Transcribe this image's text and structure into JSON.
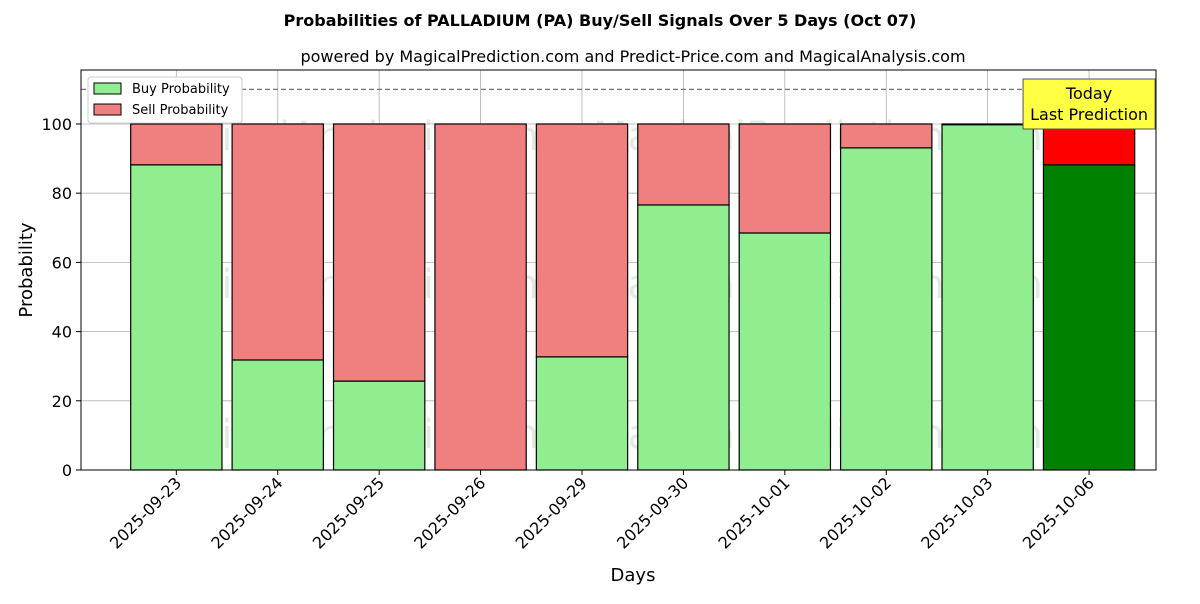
{
  "chart_data": {
    "type": "bar",
    "stacked": true,
    "title": "Probabilities of PALLADIUM (PA) Buy/Sell Signals Over 5 Days (Oct 07)",
    "subtitle": "powered by MagicalPrediction.com and Predict-Price.com and MagicalAnalysis.com",
    "xlabel": "Days",
    "ylabel": "Probability",
    "ylim": [
      0,
      115.6
    ],
    "yticks": [
      0,
      20,
      40,
      60,
      80,
      100
    ],
    "grid": true,
    "legend_position": "top-left",
    "reference_line": 110,
    "categories": [
      "2025-09-23",
      "2025-09-24",
      "2025-09-25",
      "2025-09-26",
      "2025-09-29",
      "2025-09-30",
      "2025-10-01",
      "2025-10-02",
      "2025-10-03",
      "2025-10-06"
    ],
    "series": [
      {
        "name": "Buy Probability",
        "color": "#90ee90",
        "last_color": "#008000",
        "values": [
          88.2,
          31.8,
          25.7,
          0,
          32.7,
          76.6,
          68.5,
          93.1,
          99.8,
          88.2
        ]
      },
      {
        "name": "Sell Probability",
        "color": "#f08080",
        "last_color": "#ff0000",
        "values": [
          11.8,
          68.2,
          74.3,
          100,
          67.3,
          23.4,
          31.5,
          6.9,
          0.2,
          11.8
        ]
      }
    ],
    "annotation": {
      "line1": "Today",
      "line2": "Last Prediction",
      "color": "#ffff44"
    },
    "watermarks": [
      "MagicalAnalysis.com",
      "MagicalPrediction.com"
    ]
  }
}
